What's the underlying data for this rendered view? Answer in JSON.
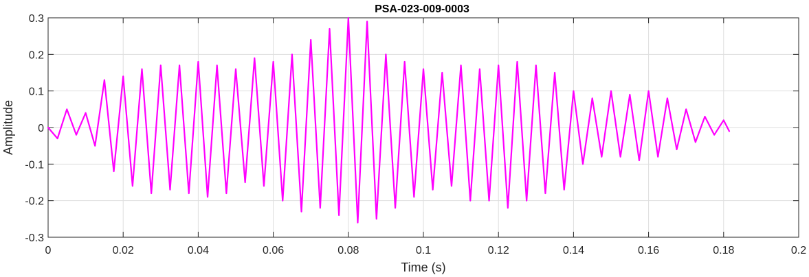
{
  "chart_data": {
    "type": "line",
    "title": "PSA-023-009-0003",
    "xlabel": "Time (s)",
    "ylabel": "Amplitude",
    "xlim": [
      0,
      0.2
    ],
    "ylim": [
      -0.3,
      0.3
    ],
    "grid": true,
    "x_ticks": [
      0,
      0.02,
      0.04,
      0.06,
      0.08,
      0.1,
      0.12,
      0.14,
      0.16,
      0.18,
      0.2
    ],
    "x_tick_labels": [
      "0",
      "0.02",
      "0.04",
      "0.06",
      "0.08",
      "0.1",
      "0.12",
      "0.14",
      "0.16",
      "0.18",
      "0.2"
    ],
    "y_ticks": [
      -0.3,
      -0.2,
      -0.1,
      0,
      0.1,
      0.2,
      0.3
    ],
    "y_tick_labels": [
      "-0.3",
      "-0.2",
      "-0.1",
      "0",
      "0.1",
      "0.2",
      "0.3"
    ],
    "series": [
      {
        "color": "#ff00ff",
        "x": [
          0,
          0.0025,
          0.005,
          0.0075,
          0.01,
          0.0125,
          0.015,
          0.0175,
          0.02,
          0.0225,
          0.025,
          0.0275,
          0.03,
          0.0325,
          0.035,
          0.0375,
          0.04,
          0.0425,
          0.045,
          0.0475,
          0.05,
          0.0525,
          0.055,
          0.0575,
          0.06,
          0.0625,
          0.065,
          0.0675,
          0.07,
          0.0725,
          0.075,
          0.0775,
          0.08,
          0.0825,
          0.085,
          0.0875,
          0.09,
          0.0925,
          0.095,
          0.0975,
          0.1,
          0.1025,
          0.105,
          0.1075,
          0.11,
          0.1125,
          0.115,
          0.1175,
          0.12,
          0.1225,
          0.125,
          0.1275,
          0.13,
          0.1325,
          0.135,
          0.1375,
          0.14,
          0.1425,
          0.145,
          0.1475,
          0.15,
          0.1525,
          0.155,
          0.1575,
          0.16,
          0.1625,
          0.165,
          0.1675,
          0.17,
          0.1725,
          0.175,
          0.1775,
          0.18,
          0.1815
        ],
        "y": [
          0,
          -0.03,
          0.05,
          -0.02,
          0.04,
          -0.05,
          0.13,
          -0.12,
          0.14,
          -0.16,
          0.16,
          -0.18,
          0.17,
          -0.17,
          0.17,
          -0.18,
          0.18,
          -0.19,
          0.17,
          -0.18,
          0.16,
          -0.15,
          0.19,
          -0.16,
          0.18,
          -0.2,
          0.2,
          -0.23,
          0.24,
          -0.22,
          0.27,
          -0.24,
          0.3,
          -0.26,
          0.29,
          -0.25,
          0.2,
          -0.22,
          0.18,
          -0.19,
          0.16,
          -0.17,
          0.15,
          -0.16,
          0.17,
          -0.2,
          0.16,
          -0.2,
          0.17,
          -0.22,
          0.18,
          -0.2,
          0.17,
          -0.18,
          0.15,
          -0.17,
          0.1,
          -0.1,
          0.08,
          -0.08,
          0.1,
          -0.08,
          0.09,
          -0.09,
          0.1,
          -0.08,
          0.08,
          -0.06,
          0.05,
          -0.04,
          0.03,
          -0.02,
          0.02,
          -0.01
        ]
      }
    ]
  }
}
